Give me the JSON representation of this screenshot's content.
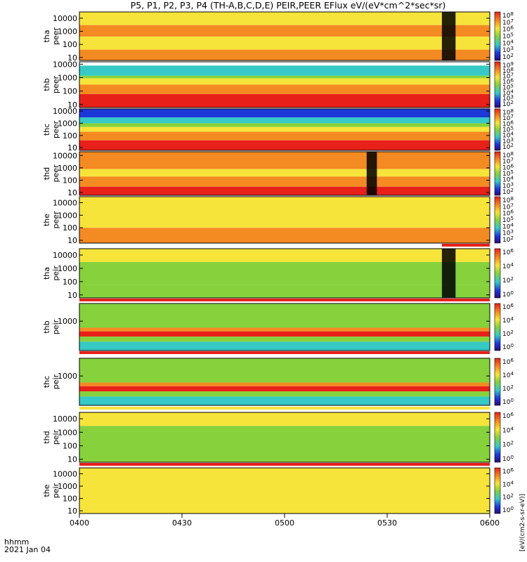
{
  "title": "P5, P1, P2, P3, P4 (TH-A,B,C,D,E) PEIR,PEER EFlux eV/(eV*cm^2*sec*sr)",
  "xaxis": {
    "ticks": [
      "0400",
      "0430",
      "0500",
      "0530",
      "0600"
    ],
    "time_label": "hhmm",
    "date_label": "2021 Jan 04"
  },
  "colorbar_label": "[eV/(cm2-s-sr-eV)]",
  "colorbar_side_text": "EFlux eV/(eV*cm^2*sec*sr)",
  "colors": {
    "red": "#e8201a",
    "orange": "#f38a22",
    "yellow": "#f6e43a",
    "green": "#86d13c",
    "cyan": "#36c9c6",
    "blue": "#1d38d8",
    "black": "#000000",
    "white": "#ffffff"
  },
  "chart_data": [
    {
      "type": "heatmap",
      "probe": "tha",
      "species": "peer",
      "label": [
        "tha",
        "peer"
      ],
      "ylabels": [
        "10000",
        "1000",
        "100",
        "10"
      ],
      "ylim": [
        6,
        30000
      ],
      "yscale": "log",
      "xlim": [
        "0400",
        "0600"
      ],
      "colorbar_ticks": [
        "10^8",
        "10^7",
        "10^6",
        "10^5",
        "10^4",
        "10^3",
        "10^2"
      ],
      "bands": [
        {
          "lo": 6,
          "hi": 40,
          "color": "orange"
        },
        {
          "lo": 40,
          "hi": 400,
          "color": "yellow"
        },
        {
          "lo": 400,
          "hi": 3000,
          "color": "orange"
        },
        {
          "lo": 3000,
          "hi": 30000,
          "color": "yellow"
        }
      ],
      "gaps": [
        {
          "start": "0546",
          "end": "0550",
          "note": "data gap"
        }
      ],
      "status_bar": null
    },
    {
      "type": "heatmap",
      "probe": "thb",
      "species": "peer",
      "label": [
        "thb",
        "peer"
      ],
      "ylabels": [
        "10000",
        "1000",
        "100",
        "10"
      ],
      "ylim": [
        6,
        15000
      ],
      "yscale": "log",
      "xlim": [
        "0400",
        "0600"
      ],
      "colorbar_ticks": [
        "10^9",
        "10^8",
        "10^7",
        "10^6",
        "10^5",
        "10^4",
        "10^3",
        "10^2"
      ],
      "bands": [
        {
          "lo": 6,
          "hi": 60,
          "color": "red"
        },
        {
          "lo": 60,
          "hi": 300,
          "color": "orange"
        },
        {
          "lo": 300,
          "hi": 900,
          "color": "yellow"
        },
        {
          "lo": 900,
          "hi": 1400,
          "color": "green"
        },
        {
          "lo": 1400,
          "hi": 8000,
          "color": "cyan"
        },
        {
          "lo": 8000,
          "hi": 15000,
          "color": "white"
        }
      ],
      "gaps": [],
      "status_bar": null
    },
    {
      "type": "heatmap",
      "probe": "thc",
      "species": "peer",
      "label": [
        "thc",
        "peer"
      ],
      "ylabels": [
        "10000",
        "1000",
        "100",
        "10"
      ],
      "ylim": [
        6,
        15000
      ],
      "yscale": "log",
      "xlim": [
        "0400",
        "0600"
      ],
      "colorbar_ticks": [
        "10^8",
        "10^7",
        "10^6",
        "10^5",
        "10^4",
        "10^3",
        "10^2"
      ],
      "bands": [
        {
          "lo": 6,
          "hi": 40,
          "color": "red"
        },
        {
          "lo": 40,
          "hi": 200,
          "color": "orange"
        },
        {
          "lo": 200,
          "hi": 500,
          "color": "yellow"
        },
        {
          "lo": 500,
          "hi": 1000,
          "color": "green"
        },
        {
          "lo": 1000,
          "hi": 3000,
          "color": "cyan"
        },
        {
          "lo": 3000,
          "hi": 15000,
          "color": "blue"
        }
      ],
      "gaps": [],
      "status_bar": null
    },
    {
      "type": "heatmap",
      "probe": "thd",
      "species": "peer",
      "label": [
        "thd",
        "peer"
      ],
      "ylabels": [
        "10000",
        "1000",
        "100",
        "10"
      ],
      "ylim": [
        6,
        20000
      ],
      "yscale": "log",
      "xlim": [
        "0400",
        "0600"
      ],
      "colorbar_ticks": [
        "10^8",
        "10^7",
        "10^6",
        "10^5",
        "10^4",
        "10^3",
        "10^2"
      ],
      "bands": [
        {
          "lo": 6,
          "hi": 30,
          "color": "red"
        },
        {
          "lo": 30,
          "hi": 200,
          "color": "orange"
        },
        {
          "lo": 200,
          "hi": 800,
          "color": "yellow"
        },
        {
          "lo": 800,
          "hi": 20000,
          "color": "orange"
        }
      ],
      "gaps": [
        {
          "start": "0524",
          "end": "0527",
          "note": "data gap"
        }
      ],
      "status_bar": null
    },
    {
      "type": "heatmap",
      "probe": "the",
      "species": "peer",
      "label": [
        "the",
        "peer"
      ],
      "ylabels": [
        "10000",
        "1000",
        "100",
        "10"
      ],
      "ylim": [
        6,
        30000
      ],
      "yscale": "log",
      "xlim": [
        "0400",
        "0600"
      ],
      "colorbar_ticks": [
        "10^8",
        "10^7",
        "10^6",
        "10^5",
        "10^4",
        "10^3",
        "10^2"
      ],
      "bands": [
        {
          "lo": 6,
          "hi": 100,
          "color": "orange"
        },
        {
          "lo": 100,
          "hi": 30000,
          "color": "yellow"
        }
      ],
      "gaps": [],
      "status_bar": {
        "color": "red",
        "start": "0546",
        "end": "0600"
      }
    },
    {
      "type": "heatmap",
      "probe": "tha",
      "species": "peir",
      "label": [
        "tha",
        "peir"
      ],
      "ylabels": [
        "10000",
        "1000",
        "100",
        "10"
      ],
      "ylim": [
        6,
        30000
      ],
      "yscale": "log",
      "xlim": [
        "0400",
        "0600"
      ],
      "colorbar_ticks": [
        "10^6",
        "10^4",
        "10^2",
        "10^0"
      ],
      "bands": [
        {
          "lo": 6,
          "hi": 60,
          "color": "green"
        },
        {
          "lo": 60,
          "hi": 3000,
          "color": "green"
        },
        {
          "lo": 3000,
          "hi": 30000,
          "color": "yellow"
        }
      ],
      "gaps": [
        {
          "start": "0546",
          "end": "0550",
          "note": "data gap"
        }
      ],
      "status_bar": {
        "color": "red",
        "start": "0400",
        "end": "0600"
      }
    },
    {
      "type": "heatmap",
      "probe": "thb",
      "species": "peir",
      "label": [
        "thb",
        "peir"
      ],
      "ylabels": [
        "1000"
      ],
      "ylim": [
        100,
        4000
      ],
      "yscale": "log",
      "xlim": [
        "0400",
        "0600"
      ],
      "colorbar_ticks": [
        "10^6",
        "10^4",
        "10^2",
        "10^0"
      ],
      "bands": [
        {
          "lo": 100,
          "hi": 200,
          "color": "cyan"
        },
        {
          "lo": 200,
          "hi": 300,
          "color": "green"
        },
        {
          "lo": 300,
          "hi": 450,
          "color": "red"
        },
        {
          "lo": 450,
          "hi": 600,
          "color": "orange"
        },
        {
          "lo": 600,
          "hi": 4000,
          "color": "green"
        }
      ],
      "gaps": [],
      "status_bar": {
        "color": "red",
        "start": "0400",
        "end": "0600"
      }
    },
    {
      "type": "heatmap",
      "probe": "thc",
      "species": "peir",
      "label": [
        "thc",
        "peir"
      ],
      "ylabels": [
        "1000"
      ],
      "ylim": [
        100,
        4000
      ],
      "yscale": "log",
      "xlim": [
        "0400",
        "0600"
      ],
      "colorbar_ticks": [
        "10^6",
        "10^4",
        "10^2",
        "10^0"
      ],
      "bands": [
        {
          "lo": 100,
          "hi": 200,
          "color": "cyan"
        },
        {
          "lo": 200,
          "hi": 300,
          "color": "green"
        },
        {
          "lo": 300,
          "hi": 450,
          "color": "red"
        },
        {
          "lo": 450,
          "hi": 600,
          "color": "orange"
        },
        {
          "lo": 600,
          "hi": 4000,
          "color": "green"
        }
      ],
      "gaps": [],
      "status_bar": {
        "color": "yellow",
        "start": "0400",
        "end": "0600"
      }
    },
    {
      "type": "heatmap",
      "probe": "thd",
      "species": "peir",
      "label": [
        "thd",
        "peir"
      ],
      "ylabels": [
        "10000",
        "1000",
        "100",
        "10"
      ],
      "ylim": [
        6,
        30000
      ],
      "yscale": "log",
      "xlim": [
        "0400",
        "0600"
      ],
      "colorbar_ticks": [
        "10^6",
        "10^4",
        "10^2",
        "10^0"
      ],
      "bands": [
        {
          "lo": 6,
          "hi": 3000,
          "color": "green"
        },
        {
          "lo": 3000,
          "hi": 30000,
          "color": "yellow"
        }
      ],
      "gaps": [],
      "status_bar": {
        "color": "red",
        "start": "0524",
        "end": "0547"
      }
    },
    {
      "type": "heatmap",
      "probe": "the",
      "species": "peir",
      "label": [
        "the",
        "peir"
      ],
      "ylabels": [
        "10000",
        "1000",
        "100",
        "10"
      ],
      "ylim": [
        6,
        30000
      ],
      "yscale": "log",
      "xlim": [
        "0400",
        "0600"
      ],
      "colorbar_ticks": [
        "10^6",
        "10^4",
        "10^2",
        "10^0"
      ],
      "bands": [
        {
          "lo": 6,
          "hi": 30000,
          "color": "yellow"
        }
      ],
      "gaps": [],
      "status_bar": {
        "color": "red",
        "start": "0400",
        "end": "0600"
      }
    }
  ]
}
